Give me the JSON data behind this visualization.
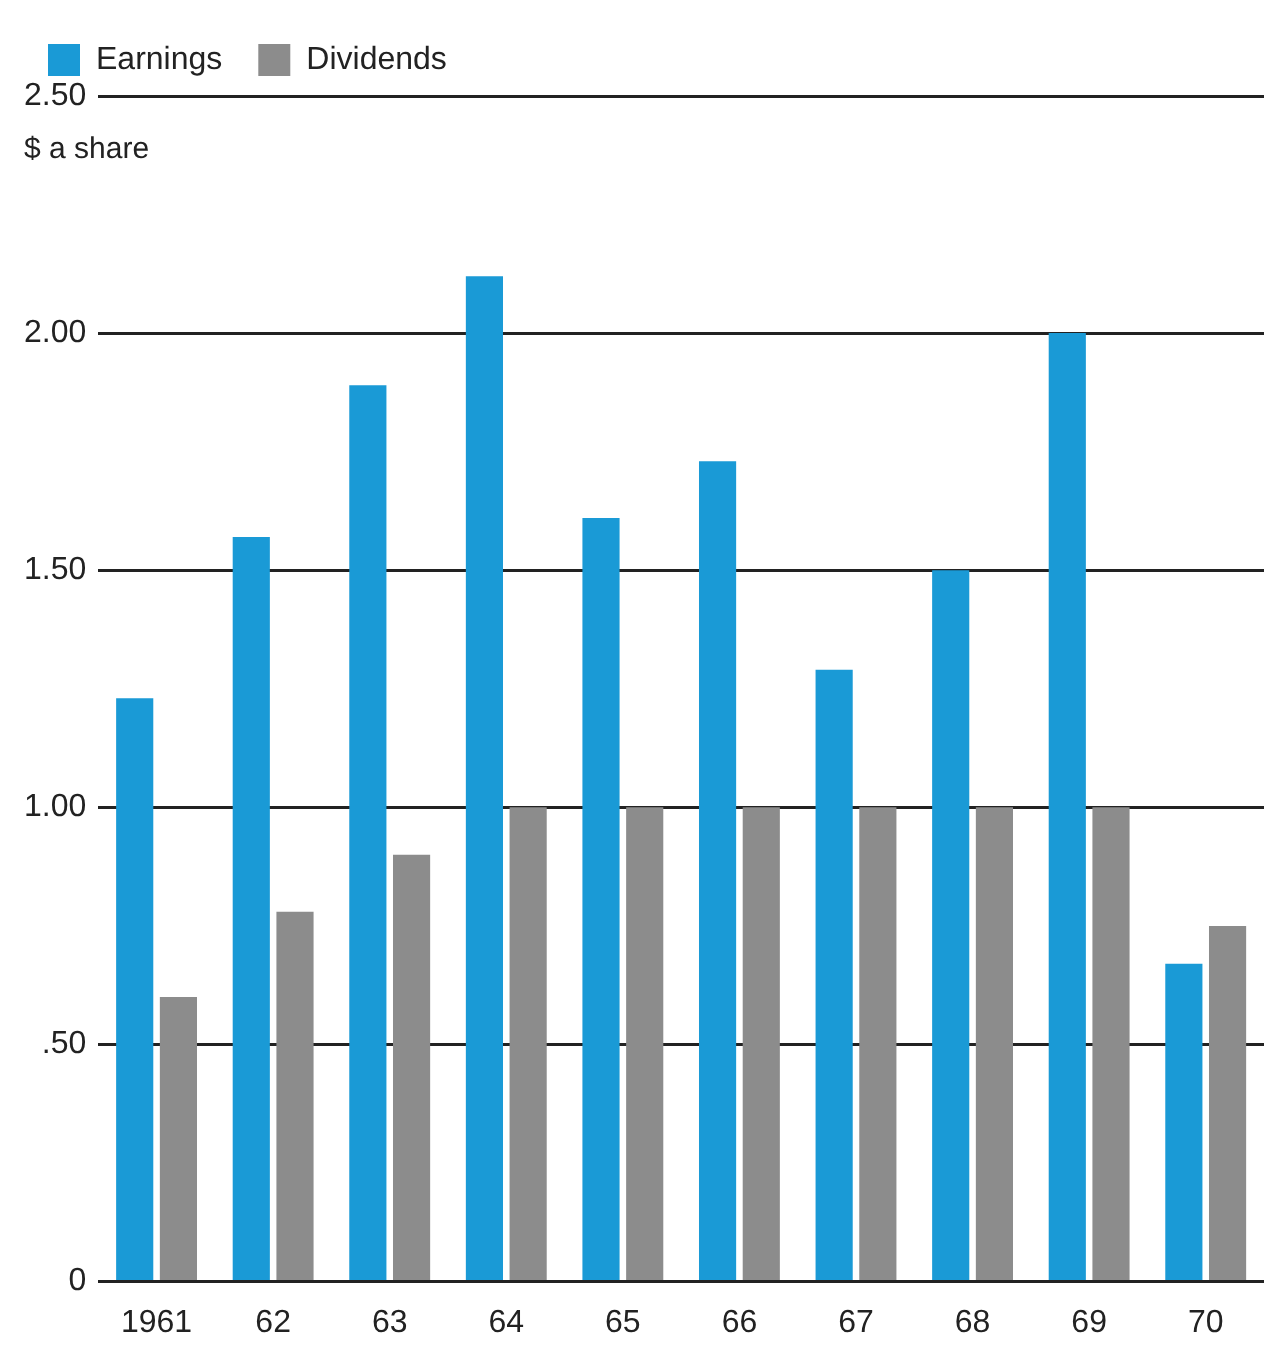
{
  "chart_data": {
    "type": "bar",
    "ylabel": "$ a share",
    "categories": [
      "1961",
      "62",
      "63",
      "64",
      "65",
      "66",
      "67",
      "68",
      "69",
      "70"
    ],
    "series": [
      {
        "name": "Earnings",
        "color": "#1a9ad6",
        "values": [
          1.23,
          1.57,
          1.89,
          2.12,
          1.61,
          1.73,
          1.29,
          1.5,
          2.0,
          0.67
        ]
      },
      {
        "name": "Dividends",
        "color": "#8c8c8c",
        "values": [
          0.6,
          0.78,
          0.9,
          1.0,
          1.0,
          1.0,
          1.0,
          1.0,
          1.0,
          0.75
        ]
      }
    ],
    "ylim": [
      0,
      2.5
    ],
    "yticks": [
      {
        "value": 0,
        "label": "0"
      },
      {
        "value": 0.5,
        "label": ".50"
      },
      {
        "value": 1,
        "label": "1.00"
      },
      {
        "value": 1.5,
        "label": "1.50"
      },
      {
        "value": 2,
        "label": "2.00"
      },
      {
        "value": 2.5,
        "label": "2.50"
      }
    ],
    "grid": "y",
    "legend": "top left"
  }
}
